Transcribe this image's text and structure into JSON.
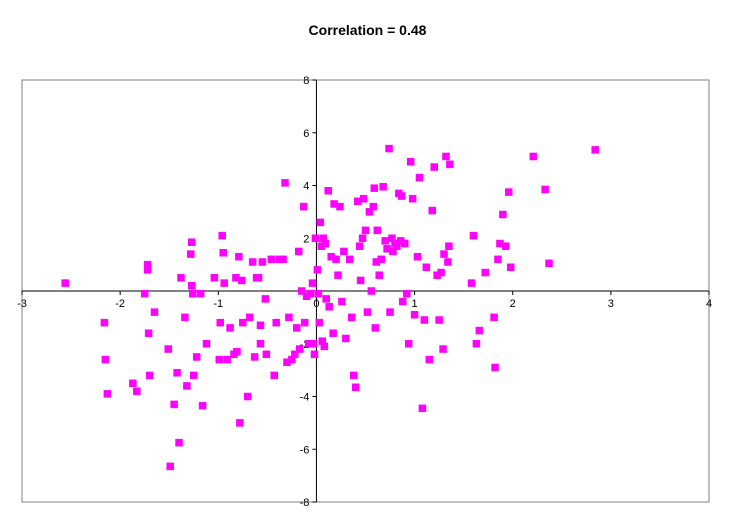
{
  "chart_data": {
    "type": "scatter",
    "title": "Correlation = 0.48",
    "xlabel": "",
    "ylabel": "",
    "xlim": [
      -3,
      4
    ],
    "ylim": [
      -8,
      8
    ],
    "x_ticks": [
      -3,
      -2,
      -1,
      0,
      1,
      2,
      3,
      4
    ],
    "y_ticks": [
      -8,
      -6,
      -4,
      -2,
      2,
      4,
      6,
      8
    ],
    "tick_labels_x": [
      "-3",
      "-2",
      "-1",
      "0",
      "1",
      "2",
      "3",
      "4"
    ],
    "tick_labels_y": [
      "-8",
      "-6",
      "-4",
      "-2",
      "2",
      "4",
      "6",
      "8"
    ],
    "grid": false,
    "legend": "none",
    "marker_color": "#ff00ff",
    "marker": "square",
    "points": [
      [
        -2.56,
        0.3
      ],
      [
        -2.16,
        -1.2
      ],
      [
        -2.15,
        -2.6
      ],
      [
        -2.13,
        -3.9
      ],
      [
        -1.87,
        -3.5
      ],
      [
        -1.83,
        -3.8
      ],
      [
        -1.75,
        -0.1
      ],
      [
        -1.72,
        0.8
      ],
      [
        -1.72,
        1.0
      ],
      [
        -1.71,
        -1.6
      ],
      [
        -1.7,
        -3.2
      ],
      [
        -1.65,
        -0.8
      ],
      [
        -1.51,
        -2.2
      ],
      [
        -1.49,
        -6.65
      ],
      [
        -1.45,
        -4.3
      ],
      [
        -1.42,
        -3.1
      ],
      [
        -1.4,
        -5.75
      ],
      [
        -1.38,
        0.5
      ],
      [
        -1.34,
        -1.0
      ],
      [
        -1.32,
        -3.6
      ],
      [
        -1.28,
        1.4
      ],
      [
        -1.27,
        1.85
      ],
      [
        -1.27,
        0.2
      ],
      [
        -1.26,
        -0.1
      ],
      [
        -1.25,
        -3.2
      ],
      [
        -1.22,
        -2.5
      ],
      [
        -1.18,
        -0.1
      ],
      [
        -1.16,
        -4.35
      ],
      [
        -1.12,
        -2.0
      ],
      [
        -1.04,
        0.5
      ],
      [
        -0.99,
        -2.6
      ],
      [
        -0.98,
        -1.2
      ],
      [
        -0.96,
        2.1
      ],
      [
        -0.95,
        1.45
      ],
      [
        -0.94,
        0.3
      ],
      [
        -0.91,
        -2.6
      ],
      [
        -0.88,
        -1.4
      ],
      [
        -0.84,
        -2.4
      ],
      [
        -0.82,
        0.5
      ],
      [
        -0.81,
        -2.3
      ],
      [
        -0.79,
        1.3
      ],
      [
        -0.78,
        -5.0
      ],
      [
        -0.76,
        0.4
      ],
      [
        -0.75,
        -1.2
      ],
      [
        -0.7,
        -4.0
      ],
      [
        -0.68,
        -1.0
      ],
      [
        -0.65,
        1.1
      ],
      [
        -0.63,
        -2.5
      ],
      [
        -0.61,
        0.5
      ],
      [
        -0.59,
        0.5
      ],
      [
        -0.57,
        -2.0
      ],
      [
        -0.57,
        -1.3
      ],
      [
        -0.55,
        1.1
      ],
      [
        -0.52,
        -0.3
      ],
      [
        -0.51,
        -2.4
      ],
      [
        -0.46,
        1.2
      ],
      [
        -0.43,
        -3.2
      ],
      [
        -0.41,
        -1.2
      ],
      [
        -0.38,
        1.2
      ],
      [
        -0.34,
        1.2
      ],
      [
        -0.32,
        4.1
      ],
      [
        -0.3,
        -2.7
      ],
      [
        -0.28,
        -1.0
      ],
      [
        -0.25,
        -2.6
      ],
      [
        -0.22,
        -2.4
      ],
      [
        -0.2,
        -1.4
      ],
      [
        -0.18,
        1.5
      ],
      [
        -0.17,
        -2.2
      ],
      [
        -0.15,
        0.0
      ],
      [
        -0.13,
        3.2
      ],
      [
        -0.12,
        -1.2
      ],
      [
        -0.1,
        -0.2
      ],
      [
        -0.08,
        -2.0
      ],
      [
        -0.06,
        -0.1
      ],
      [
        -0.04,
        0.3
      ],
      [
        -0.03,
        -2.0
      ],
      [
        -0.02,
        -2.4
      ],
      [
        -0.01,
        2.0
      ],
      [
        0.01,
        0.8
      ],
      [
        0.02,
        -0.1
      ],
      [
        0.03,
        -1.2
      ],
      [
        0.04,
        2.6
      ],
      [
        0.05,
        1.7
      ],
      [
        0.06,
        -1.9
      ],
      [
        0.07,
        2.0
      ],
      [
        0.08,
        -2.1
      ],
      [
        0.09,
        1.8
      ],
      [
        0.1,
        -0.3
      ],
      [
        0.12,
        3.8
      ],
      [
        0.13,
        -0.6
      ],
      [
        0.15,
        1.3
      ],
      [
        0.17,
        -1.6
      ],
      [
        0.18,
        3.3
      ],
      [
        0.2,
        1.2
      ],
      [
        0.22,
        0.6
      ],
      [
        0.24,
        3.2
      ],
      [
        0.26,
        -0.4
      ],
      [
        0.28,
        1.5
      ],
      [
        0.3,
        -1.8
      ],
      [
        0.34,
        1.2
      ],
      [
        0.36,
        -1.0
      ],
      [
        0.38,
        -3.2
      ],
      [
        0.4,
        -3.65
      ],
      [
        0.42,
        3.4
      ],
      [
        0.44,
        1.7
      ],
      [
        0.45,
        0.4
      ],
      [
        0.47,
        2.0
      ],
      [
        0.48,
        3.5
      ],
      [
        0.5,
        2.3
      ],
      [
        0.52,
        -0.8
      ],
      [
        0.54,
        3.0
      ],
      [
        0.56,
        0.0
      ],
      [
        0.58,
        3.2
      ],
      [
        0.59,
        3.9
      ],
      [
        0.6,
        -1.4
      ],
      [
        0.61,
        1.1
      ],
      [
        0.62,
        2.3
      ],
      [
        0.64,
        0.6
      ],
      [
        0.66,
        1.2
      ],
      [
        0.68,
        3.95
      ],
      [
        0.7,
        1.9
      ],
      [
        0.72,
        1.6
      ],
      [
        0.74,
        5.4
      ],
      [
        0.75,
        -0.8
      ],
      [
        0.77,
        2.0
      ],
      [
        0.78,
        1.5
      ],
      [
        0.8,
        1.8
      ],
      [
        0.82,
        1.7
      ],
      [
        0.84,
        3.7
      ],
      [
        0.86,
        1.9
      ],
      [
        0.87,
        3.6
      ],
      [
        0.88,
        -0.4
      ],
      [
        0.9,
        1.8
      ],
      [
        0.92,
        -0.1
      ],
      [
        0.94,
        -2.0
      ],
      [
        0.96,
        4.9
      ],
      [
        0.98,
        3.5
      ],
      [
        1.0,
        -0.9
      ],
      [
        1.03,
        1.3
      ],
      [
        1.05,
        4.3
      ],
      [
        1.08,
        -4.45
      ],
      [
        1.1,
        -1.1
      ],
      [
        1.12,
        0.9
      ],
      [
        1.15,
        -2.6
      ],
      [
        1.18,
        3.05
      ],
      [
        1.2,
        4.7
      ],
      [
        1.23,
        0.6
      ],
      [
        1.25,
        -1.1
      ],
      [
        1.27,
        0.7
      ],
      [
        1.29,
        -2.2
      ],
      [
        1.3,
        1.4
      ],
      [
        1.32,
        5.1
      ],
      [
        1.34,
        1.1
      ],
      [
        1.35,
        1.7
      ],
      [
        1.36,
        4.8
      ],
      [
        1.58,
        0.3
      ],
      [
        1.6,
        2.1
      ],
      [
        1.63,
        -2.0
      ],
      [
        1.66,
        -1.5
      ],
      [
        1.72,
        0.7
      ],
      [
        1.81,
        -1.0
      ],
      [
        1.82,
        -2.9
      ],
      [
        1.85,
        1.2
      ],
      [
        1.87,
        1.8
      ],
      [
        1.9,
        2.9
      ],
      [
        1.93,
        1.7
      ],
      [
        1.96,
        3.75
      ],
      [
        1.98,
        0.9
      ],
      [
        2.21,
        5.1
      ],
      [
        2.33,
        3.85
      ],
      [
        2.37,
        1.05
      ],
      [
        2.84,
        5.35
      ]
    ]
  }
}
